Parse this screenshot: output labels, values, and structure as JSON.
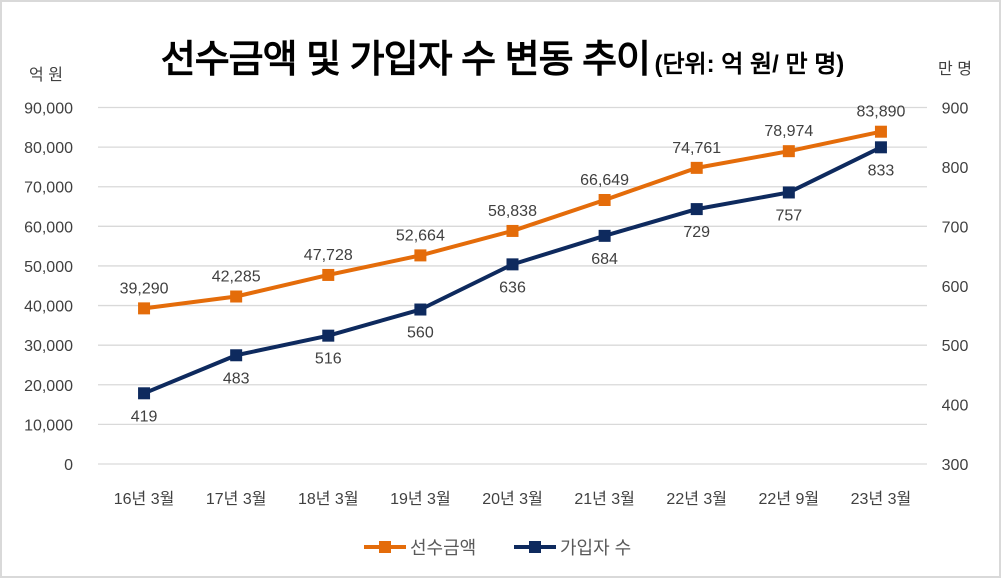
{
  "chart_data": {
    "type": "line",
    "title": "선수금액 및 가입자 수 변동 추이",
    "subtitle": "(단위: 억 원/ 만 명)",
    "ylabel_left": "억 원",
    "ylabel_right": "만 명",
    "categories": [
      "16년 3월",
      "17년 3월",
      "18년 3월",
      "19년 3월",
      "20년 3월",
      "21년 3월",
      "22년 3월",
      "22년 9월",
      "23년 3월"
    ],
    "y_left": {
      "min": 0,
      "max": 90000,
      "step": 10000,
      "ticks": [
        "0",
        "10,000",
        "20,000",
        "30,000",
        "40,000",
        "50,000",
        "60,000",
        "70,000",
        "80,000",
        "90,000"
      ]
    },
    "y_right": {
      "min": 300,
      "max": 900,
      "step": 100,
      "ticks": [
        "300",
        "400",
        "500",
        "600",
        "700",
        "800",
        "900"
      ]
    },
    "grid": true,
    "legend_position": "bottom",
    "series": [
      {
        "name": "선수금액",
        "axis": "left",
        "color": "#E46C0A",
        "values": [
          39290,
          42285,
          47728,
          52664,
          58838,
          66649,
          74761,
          78974,
          83890
        ],
        "labels": [
          "39,290",
          "42,285",
          "47,728",
          "52,664",
          "58,838",
          "66,649",
          "74,761",
          "78,974",
          "83,890"
        ],
        "label_position": "above"
      },
      {
        "name": "가입자 수",
        "axis": "right",
        "color": "#0E2A5E",
        "values": [
          419,
          483,
          516,
          560,
          636,
          684,
          729,
          757,
          833
        ],
        "labels": [
          "419",
          "483",
          "516",
          "560",
          "636",
          "684",
          "729",
          "757",
          "833"
        ],
        "label_position": "below"
      }
    ]
  }
}
